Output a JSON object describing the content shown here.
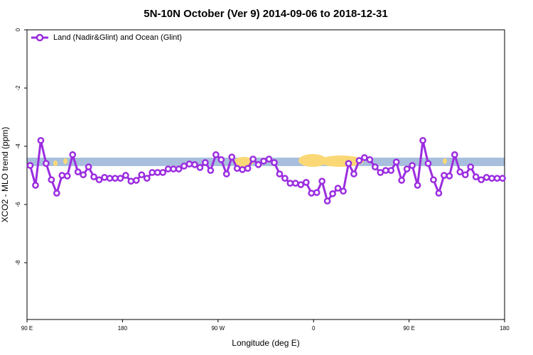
{
  "chart_data": {
    "type": "line",
    "title": "5N-10N October (Ver 9)   2014-09-06 to 2018-12-31",
    "xlabel": "Longitude (deg E)",
    "ylabel": "XCO2 - MLO trend (ppm)",
    "xlim": [
      90,
      540
    ],
    "ylim": [
      -9.95,
      0
    ],
    "xticks": [
      {
        "value": 90,
        "label": "90 E"
      },
      {
        "value": 180,
        "label": "180"
      },
      {
        "value": 270,
        "label": "90 W"
      },
      {
        "value": 360,
        "label": "0"
      },
      {
        "value": 450,
        "label": "90 E"
      },
      {
        "value": 540,
        "label": "180"
      }
    ],
    "yticks": [
      0,
      -2,
      -4,
      -6,
      -8
    ],
    "band": {
      "color": "#a7bfdc",
      "range": [
        -4.68,
        -4.39
      ]
    },
    "legend": "top-left",
    "x": [
      93,
      98,
      103,
      108,
      113,
      118,
      123,
      128,
      133,
      138,
      143,
      148,
      153,
      158,
      163,
      168,
      173,
      178,
      183,
      188,
      193,
      198,
      203,
      208,
      213,
      218,
      223,
      228,
      233,
      238,
      243,
      248,
      253,
      258,
      263,
      268,
      273,
      278,
      283,
      288,
      293,
      298,
      303,
      308,
      313,
      318,
      323,
      328,
      333,
      338,
      343,
      348,
      353,
      358,
      363,
      368,
      373,
      378,
      383,
      388,
      393,
      398,
      403,
      408,
      413,
      418,
      423,
      428,
      433,
      438,
      443,
      448,
      453,
      458,
      463,
      468,
      473,
      478,
      483,
      488,
      493,
      498,
      503,
      508,
      513,
      518,
      523,
      528,
      533,
      538
    ],
    "series": [
      {
        "name": "Land (Nadir&Glint) and Ocean (Glint)",
        "color": "#9b2de0",
        "values": [
          -4.66,
          -5.34,
          -3.8,
          -4.59,
          -5.15,
          -5.61,
          -5.0,
          -5.02,
          -4.29,
          -4.88,
          -4.98,
          -4.71,
          -5.05,
          -5.15,
          -5.07,
          -5.1,
          -5.1,
          -5.1,
          -5.0,
          -5.2,
          -5.17,
          -4.98,
          -5.1,
          -4.9,
          -4.9,
          -4.9,
          -4.78,
          -4.78,
          -4.78,
          -4.68,
          -4.61,
          -4.63,
          -4.73,
          -4.56,
          -4.83,
          -4.29,
          -4.46,
          -4.95,
          -4.37,
          -4.76,
          -4.8,
          -4.76,
          -4.44,
          -4.63,
          -4.51,
          -4.44,
          -4.56,
          -4.95,
          -5.1,
          -5.27,
          -5.27,
          -5.32,
          -5.24,
          -5.61,
          -5.59,
          -5.2,
          -5.88,
          -5.63,
          -5.44,
          -5.54,
          -4.59,
          -4.95,
          -4.49,
          -4.39,
          -4.46,
          -4.71,
          -4.9,
          -4.83,
          -4.83,
          -4.54,
          -5.17,
          -4.78,
          -4.66,
          -5.34,
          -3.8,
          -4.59,
          -5.15,
          -5.61,
          -5.0,
          -5.02,
          -4.29,
          -4.88,
          -4.98,
          -4.71,
          -5.05,
          -5.15,
          -5.07,
          -5.1,
          -5.1,
          -5.1
        ]
      }
    ]
  }
}
